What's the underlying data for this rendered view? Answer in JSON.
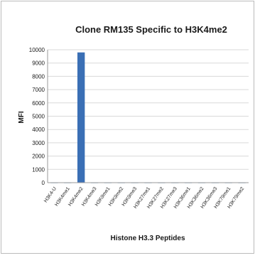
{
  "chart_data": {
    "type": "bar",
    "title": "Clone RM135 Specific to H3K4me2",
    "xlabel": "Histone H3.3 Peptides",
    "ylabel": "MFI",
    "ylim": [
      0,
      10000
    ],
    "yticks": [
      0,
      1000,
      2000,
      3000,
      4000,
      5000,
      6000,
      7000,
      8000,
      9000,
      10000
    ],
    "grid": true,
    "legend": "none",
    "categories": [
      "H3K4-U",
      "H3K4me1",
      "H3K4me2",
      "H3K4me3",
      "H3K9me1",
      "H3K9me2",
      "H3K9me3",
      "H3K27me1",
      "H3K27me2",
      "H3K27me3",
      "H3K36me1",
      "H3K36me2",
      "H3K36me3",
      "H3K79me1",
      "H3K79me2"
    ],
    "values": [
      20,
      20,
      9800,
      20,
      20,
      20,
      20,
      20,
      20,
      20,
      20,
      20,
      20,
      20,
      20
    ],
    "colors": {
      "bar": "#3a6fb5",
      "grid": "#d9d9d9",
      "axis": "#999999",
      "border": "#bbbbbb",
      "text": "#1a1a1a"
    }
  }
}
